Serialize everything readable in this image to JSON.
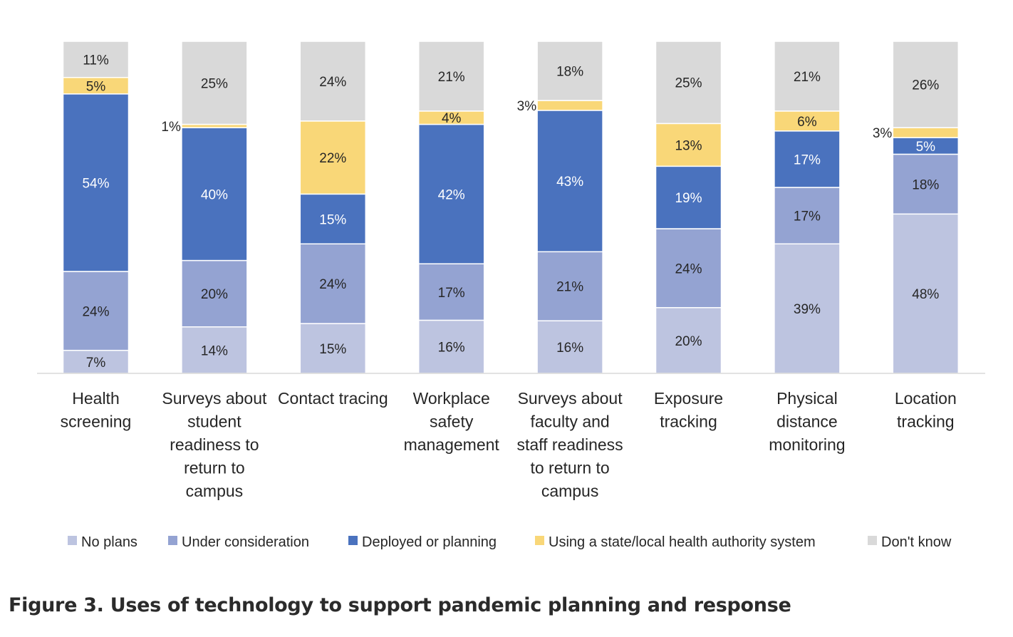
{
  "caption": "Figure 3. Uses of technology to support pandemic planning and response",
  "chart_data": {
    "type": "bar",
    "stacked": true,
    "normalized": true,
    "title": "",
    "xlabel": "",
    "ylabel": "",
    "ylim": [
      0,
      100
    ],
    "grid": false,
    "legend_position": "bottom",
    "value_format": "percent",
    "categories": [
      "Health screening",
      "Surveys about student readiness to return to campus",
      "Contact tracing",
      "Workplace safety management",
      "Surveys about faculty and staff readiness to return to campus",
      "Exposure tracking",
      "Physical distance monitoring",
      "Location tracking"
    ],
    "category_label_lines": [
      [
        "Health",
        "screening"
      ],
      [
        "Surveys about",
        "student",
        "readiness to",
        "return to",
        "campus"
      ],
      [
        "Contact tracing"
      ],
      [
        "Workplace",
        "safety",
        "management"
      ],
      [
        "Surveys about",
        "faculty and",
        "staff readiness",
        "to return to",
        "campus"
      ],
      [
        "Exposure",
        "tracking"
      ],
      [
        "Physical",
        "distance",
        "monitoring"
      ],
      [
        "Location",
        "tracking"
      ]
    ],
    "series": [
      {
        "name": "No plans",
        "color": "#BDC4E0",
        "label_color": "#262626",
        "values": [
          7,
          14,
          15,
          16,
          16,
          20,
          39,
          48
        ]
      },
      {
        "name": "Under consideration",
        "color": "#94A3D2",
        "label_color": "#262626",
        "values": [
          24,
          20,
          24,
          17,
          21,
          24,
          17,
          18
        ]
      },
      {
        "name": "Deployed or planning",
        "color": "#4A72BE",
        "label_color": "#FFFFFF",
        "values": [
          54,
          40,
          15,
          42,
          43,
          19,
          17,
          5
        ]
      },
      {
        "name": "Using a state/local health authority system",
        "color": "#F9D778",
        "label_color": "#262626",
        "values": [
          5,
          1,
          22,
          4,
          3,
          13,
          6,
          3
        ]
      },
      {
        "name": "Don't know",
        "color": "#D9D9D9",
        "label_color": "#262626",
        "values": [
          11,
          25,
          24,
          21,
          18,
          25,
          21,
          26
        ]
      }
    ]
  }
}
